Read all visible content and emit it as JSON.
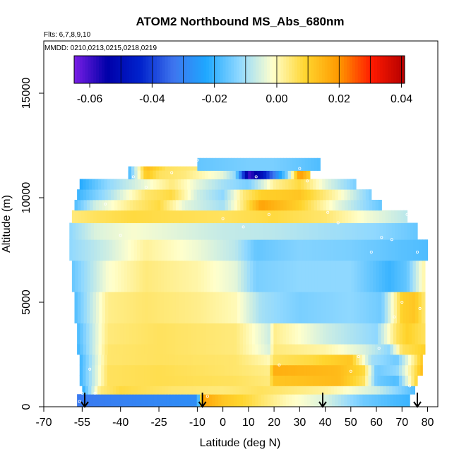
{
  "chart_data": {
    "type": "heatmap",
    "title": "ATOM2 Northbound MS_Abs_680nm",
    "subtitle_flights": "Flts: 6,7,8,9,10",
    "subtitle_dates": "MMDD: 0210,0213,0215,0218,0219",
    "xlabel": "Latitude (deg N)",
    "ylabel": "Altitude (m)",
    "xlim": [
      -70,
      84
    ],
    "ylim": [
      0,
      17500
    ],
    "x_ticks": [
      -70,
      -55,
      -40,
      -25,
      -10,
      0,
      10,
      20,
      30,
      40,
      50,
      60,
      70,
      80
    ],
    "x_tick_labels": [
      "-70",
      "-55",
      "-40",
      "-25",
      "-10",
      "0",
      "10",
      "20",
      "30",
      "40",
      "50",
      "60",
      "70",
      "80"
    ],
    "y_ticks": [
      0,
      5000,
      10000,
      15000
    ],
    "y_tick_labels": [
      "0",
      "5000",
      "10000",
      "15000"
    ],
    "colorbar": {
      "min": -0.065,
      "max": 0.041,
      "ticks": [
        -0.06,
        -0.04,
        -0.02,
        0.0,
        0.02,
        0.04
      ],
      "tick_labels": [
        "-0.06",
        "-0.04",
        "-0.02",
        "0.00",
        "0.02",
        "0.04"
      ],
      "boundaries": [
        -0.05,
        -0.04,
        -0.03,
        -0.02,
        -0.01,
        0.0,
        0.01,
        0.02,
        0.03,
        0.04
      ],
      "colors": [
        "#7a1ee6",
        "#0000a8",
        "#0022cc",
        "#3e74ee",
        "#1ea8ff",
        "#8fd8ff",
        "#ffffcc",
        "#ffd52e",
        "#ff9a00",
        "#ff1a00",
        "#b40000"
      ]
    },
    "arrows_latitude": [
      -54,
      -8,
      39,
      76
    ],
    "bands": [
      {
        "alt": [
          0,
          600
        ],
        "lat": [
          -57,
          73
        ],
        "kx": [
          -57,
          -10,
          -8,
          0,
          10,
          25,
          40,
          55,
          65,
          73
        ],
        "kv": [
          -0.032,
          -0.028,
          0.018,
          0.012,
          0.008,
          0.0,
          -0.005,
          -0.015,
          -0.018,
          -0.02
        ]
      },
      {
        "alt": [
          600,
          1000
        ],
        "lat": [
          -55,
          75
        ],
        "kx": [
          -55,
          -48,
          -40,
          -20,
          0,
          15,
          40,
          60,
          75
        ],
        "kv": [
          -0.022,
          0.004,
          0.008,
          0.005,
          0.004,
          0.006,
          0.002,
          -0.006,
          -0.018
        ]
      },
      {
        "alt": [
          1000,
          1500
        ],
        "lat": [
          -56,
          76
        ],
        "kx": [
          -56,
          -45,
          -25,
          5,
          18,
          20,
          45,
          55,
          60,
          68,
          76
        ],
        "kv": [
          -0.02,
          0.006,
          0.007,
          0.006,
          0.004,
          0.012,
          0.014,
          0.006,
          -0.015,
          -0.018,
          0.01
        ]
      },
      {
        "alt": [
          1500,
          2000
        ],
        "lat": [
          -56,
          78
        ],
        "kx": [
          -56,
          -45,
          -25,
          5,
          18,
          20,
          45,
          55,
          60,
          68,
          78
        ],
        "kv": [
          -0.02,
          0.006,
          0.007,
          0.005,
          0.003,
          0.016,
          0.014,
          0.008,
          -0.015,
          -0.012,
          0.014
        ]
      },
      {
        "alt": [
          2000,
          2500
        ],
        "lat": [
          -56,
          78
        ],
        "kx": [
          -56,
          -45,
          -25,
          5,
          18,
          20,
          35,
          50,
          58,
          68,
          78
        ],
        "kv": [
          -0.02,
          0.005,
          0.006,
          0.005,
          0.0,
          0.006,
          0.008,
          0.012,
          -0.01,
          -0.015,
          0.012
        ]
      },
      {
        "alt": [
          2500,
          3000
        ],
        "lat": [
          -57,
          79
        ],
        "kx": [
          -57,
          -45,
          -25,
          5,
          18,
          20,
          40,
          55,
          65,
          70,
          79
        ],
        "kv": [
          -0.02,
          0.005,
          0.006,
          0.004,
          -0.005,
          0.004,
          0.001,
          -0.005,
          -0.012,
          0.006,
          0.01
        ]
      },
      {
        "alt": [
          3000,
          4000
        ],
        "lat": [
          -57,
          79
        ],
        "kx": [
          -57,
          -45,
          -25,
          5,
          18,
          20,
          40,
          60,
          68,
          72,
          79
        ],
        "kv": [
          -0.019,
          0.004,
          0.006,
          0.004,
          -0.006,
          0.003,
          -0.006,
          -0.012,
          0.006,
          0.01,
          0.006
        ]
      },
      {
        "alt": [
          4000,
          5500
        ],
        "lat": [
          -58,
          79
        ],
        "kx": [
          -58,
          -45,
          -30,
          -10,
          5,
          15,
          30,
          50,
          62,
          70,
          75,
          79
        ],
        "kv": [
          -0.018,
          0.003,
          0.005,
          0.003,
          0.0,
          -0.01,
          -0.014,
          -0.012,
          -0.015,
          0.01,
          0.012,
          0.004
        ]
      },
      {
        "alt": [
          5500,
          7000
        ],
        "lat": [
          -59,
          79
        ],
        "kx": [
          -59,
          -45,
          -30,
          -10,
          5,
          13,
          30,
          50,
          65,
          72,
          79
        ],
        "kv": [
          -0.016,
          -0.002,
          0.004,
          0.001,
          -0.004,
          -0.014,
          -0.012,
          -0.012,
          -0.02,
          -0.016,
          0.002
        ]
      },
      {
        "alt": [
          7000,
          8000
        ],
        "lat": [
          -60,
          80
        ],
        "kx": [
          -60,
          -45,
          -30,
          -10,
          5,
          13,
          30,
          50,
          70,
          80
        ],
        "kv": [
          -0.012,
          -0.006,
          0.002,
          -0.003,
          -0.008,
          -0.016,
          -0.013,
          -0.014,
          -0.017,
          -0.018
        ]
      },
      {
        "alt": [
          8000,
          8800
        ],
        "lat": [
          -60,
          76
        ],
        "kx": [
          -60,
          -50,
          -35,
          -20,
          0,
          20,
          40,
          60,
          76
        ],
        "kv": [
          -0.012,
          -0.005,
          -0.002,
          -0.004,
          -0.007,
          -0.008,
          -0.01,
          -0.012,
          -0.016
        ]
      },
      {
        "alt": [
          8800,
          9400
        ],
        "lat": [
          -59,
          72
        ],
        "kx": [
          -59,
          -50,
          -35,
          -20,
          0,
          20,
          40,
          55,
          72
        ],
        "kv": [
          0.004,
          0.006,
          0.008,
          0.007,
          0.006,
          0.008,
          0.005,
          -0.002,
          -0.008
        ]
      },
      {
        "alt": [
          9400,
          9900
        ],
        "lat": [
          -58,
          62
        ],
        "kx": [
          -58,
          -50,
          -35,
          -25,
          -15,
          0,
          10,
          15,
          30,
          45,
          62
        ],
        "kv": [
          -0.018,
          -0.006,
          0.004,
          0.008,
          -0.004,
          -0.01,
          0.008,
          0.018,
          0.01,
          -0.004,
          -0.016
        ]
      },
      {
        "alt": [
          9900,
          10400
        ],
        "lat": [
          -57,
          58
        ],
        "kx": [
          -57,
          -45,
          -30,
          -20,
          -10,
          0,
          8,
          15,
          30,
          45,
          58
        ],
        "kv": [
          -0.02,
          -0.01,
          0.005,
          0.008,
          -0.006,
          -0.012,
          0.004,
          0.01,
          0.012,
          0.0,
          -0.014
        ]
      },
      {
        "alt": [
          10400,
          10900
        ],
        "lat": [
          -56,
          52
        ],
        "kx": [
          -56,
          -45,
          -30,
          -20,
          -10,
          0,
          10,
          20,
          30,
          40,
          52
        ],
        "kv": [
          -0.022,
          -0.012,
          -0.003,
          0.004,
          -0.004,
          -0.01,
          -0.014,
          0.002,
          0.008,
          -0.004,
          -0.014
        ]
      },
      {
        "alt": [
          10900,
          11500
        ],
        "lat": [
          -37,
          34
        ],
        "kx": [
          -37,
          -30,
          -22,
          -10,
          0,
          10,
          15,
          25,
          30,
          34
        ],
        "kv": [
          -0.02,
          0.014,
          0.006,
          0.004,
          0.002,
          -0.004,
          -0.012,
          0.004,
          0.018,
          0.006
        ]
      },
      {
        "alt": [
          10900,
          11300
        ],
        "lat": [
          -37,
          34
        ],
        "kx": [
          -37,
          -30,
          -25,
          -15,
          0,
          5,
          10,
          15,
          25,
          30,
          34
        ],
        "kv": [
          -0.02,
          0.012,
          0.006,
          0.004,
          -0.004,
          -0.012,
          -0.06,
          -0.05,
          -0.014,
          0.02,
          0.01
        ]
      },
      {
        "alt": [
          11300,
          11900
        ],
        "lat": [
          -10,
          38
        ],
        "kx": [
          -10,
          0,
          10,
          20,
          30,
          38
        ],
        "kv": [
          -0.016,
          -0.015,
          -0.014,
          -0.014,
          -0.016,
          -0.018
        ]
      }
    ],
    "sample_points": [
      [
        -56,
        250
      ],
      [
        -55,
        650
      ],
      [
        -52,
        1800
      ],
      [
        -50,
        650
      ],
      [
        -46,
        9700
      ],
      [
        -40,
        8200
      ],
      [
        -35,
        11000
      ],
      [
        -30,
        10500
      ],
      [
        -20,
        11200
      ],
      [
        -10,
        11800
      ],
      [
        -6,
        500
      ],
      [
        0,
        9000
      ],
      [
        8,
        8600
      ],
      [
        13,
        11000
      ],
      [
        18,
        9200
      ],
      [
        22,
        2000
      ],
      [
        30,
        11400
      ],
      [
        33,
        10800
      ],
      [
        41,
        9300
      ],
      [
        45,
        8800
      ],
      [
        50,
        1700
      ],
      [
        53,
        2400
      ],
      [
        58,
        7400
      ],
      [
        61,
        2800
      ],
      [
        62,
        8100
      ],
      [
        66,
        8000
      ],
      [
        67,
        4300
      ],
      [
        70,
        5000
      ],
      [
        72,
        9200
      ],
      [
        73,
        1000
      ],
      [
        74,
        500
      ],
      [
        76,
        7400
      ],
      [
        77,
        4700
      ]
    ]
  }
}
